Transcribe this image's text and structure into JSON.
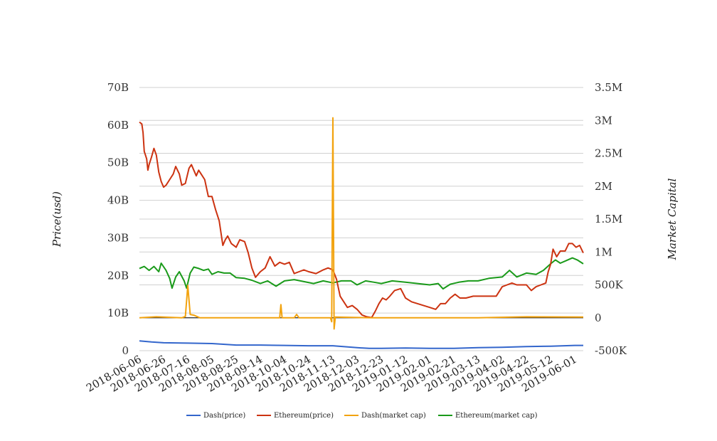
{
  "chart_data": {
    "type": "line",
    "title": "",
    "ylabel_left": "Price(usd)",
    "ylabel_right": "Market Capital",
    "left_axis": {
      "min": 0,
      "max": 70000000000,
      "ticks": [
        0,
        10000000000,
        20000000000,
        30000000000,
        40000000000,
        50000000000,
        60000000000,
        70000000000
      ],
      "tick_labels": [
        "0",
        "10B",
        "20B",
        "30B",
        "40B",
        "50B",
        "60B",
        "70B"
      ]
    },
    "right_axis": {
      "min": -500000,
      "max": 3500000,
      "ticks": [
        -500000,
        0,
        500000,
        1000000,
        1500000,
        2000000,
        2500000,
        3000000,
        3500000
      ],
      "tick_labels": [
        "-500K",
        "0",
        "500K",
        "1M",
        "1.5M",
        "2M",
        "2.5M",
        "3M",
        "3.5M"
      ]
    },
    "x_start": "2018-06-06",
    "x_end": "2019-06-08",
    "x_tick_labels": [
      "2018-06-06",
      "2018-06-26",
      "2018-07-16",
      "2018-08-05",
      "2018-08-25",
      "2018-09-14",
      "2018-10-04",
      "2018-10-24",
      "2018-11-13",
      "2018-12-03",
      "2018-12-23",
      "2019-01-12",
      "2019-02-01",
      "2019-02-21",
      "2019-03-13",
      "2019-04-02",
      "2019-04-22",
      "2019-05-12",
      "2019-06-01"
    ],
    "grid": true,
    "legend_position": "bottom",
    "series": [
      {
        "name": "Dash(price)",
        "color": "#3366cc",
        "axis": "left",
        "points": [
          [
            "2018-06-06",
            2600000000
          ],
          [
            "2018-06-16",
            2300000000
          ],
          [
            "2018-06-26",
            2100000000
          ],
          [
            "2018-07-16",
            2000000000
          ],
          [
            "2018-08-05",
            1900000000
          ],
          [
            "2018-08-25",
            1500000000
          ],
          [
            "2018-09-14",
            1500000000
          ],
          [
            "2018-10-04",
            1400000000
          ],
          [
            "2018-10-24",
            1300000000
          ],
          [
            "2018-11-13",
            1300000000
          ],
          [
            "2018-12-03",
            800000000
          ],
          [
            "2018-12-13",
            600000000
          ],
          [
            "2018-12-23",
            600000000
          ],
          [
            "2019-01-12",
            700000000
          ],
          [
            "2019-02-01",
            600000000
          ],
          [
            "2019-02-21",
            600000000
          ],
          [
            "2019-03-13",
            800000000
          ],
          [
            "2019-04-02",
            900000000
          ],
          [
            "2019-04-22",
            1100000000
          ],
          [
            "2019-05-12",
            1200000000
          ],
          [
            "2019-06-01",
            1400000000
          ],
          [
            "2019-06-08",
            1400000000
          ]
        ]
      },
      {
        "name": "Ethereum(price)",
        "color": "#cc3311",
        "axis": "left",
        "points": [
          [
            "2018-06-06",
            60800000000
          ],
          [
            "2018-06-08",
            60300000000
          ],
          [
            "2018-06-09",
            58000000000
          ],
          [
            "2018-06-10",
            53000000000
          ],
          [
            "2018-06-11",
            52000000000
          ],
          [
            "2018-06-12",
            51000000000
          ],
          [
            "2018-06-13",
            48000000000
          ],
          [
            "2018-06-14",
            49500000000
          ],
          [
            "2018-06-16",
            51500000000
          ],
          [
            "2018-06-18",
            53800000000
          ],
          [
            "2018-06-20",
            52000000000
          ],
          [
            "2018-06-22",
            47500000000
          ],
          [
            "2018-06-24",
            45000000000
          ],
          [
            "2018-06-26",
            43500000000
          ],
          [
            "2018-06-28",
            44000000000
          ],
          [
            "2018-07-01",
            45500000000
          ],
          [
            "2018-07-04",
            47000000000
          ],
          [
            "2018-07-06",
            49000000000
          ],
          [
            "2018-07-09",
            47000000000
          ],
          [
            "2018-07-11",
            44000000000
          ],
          [
            "2018-07-14",
            44500000000
          ],
          [
            "2018-07-17",
            48500000000
          ],
          [
            "2018-07-19",
            49500000000
          ],
          [
            "2018-07-21",
            48000000000
          ],
          [
            "2018-07-23",
            46500000000
          ],
          [
            "2018-07-25",
            48000000000
          ],
          [
            "2018-07-27",
            47000000000
          ],
          [
            "2018-07-30",
            45500000000
          ],
          [
            "2018-08-02",
            41000000000
          ],
          [
            "2018-08-05",
            41000000000
          ],
          [
            "2018-08-08",
            37500000000
          ],
          [
            "2018-08-11",
            34500000000
          ],
          [
            "2018-08-14",
            28000000000
          ],
          [
            "2018-08-16",
            29500000000
          ],
          [
            "2018-08-18",
            30500000000
          ],
          [
            "2018-08-21",
            28500000000
          ],
          [
            "2018-08-25",
            27500000000
          ],
          [
            "2018-08-28",
            29500000000
          ],
          [
            "2018-09-01",
            29000000000
          ],
          [
            "2018-09-04",
            26000000000
          ],
          [
            "2018-09-07",
            22000000000
          ],
          [
            "2018-09-10",
            19500000000
          ],
          [
            "2018-09-14",
            21000000000
          ],
          [
            "2018-09-18",
            22000000000
          ],
          [
            "2018-09-22",
            25000000000
          ],
          [
            "2018-09-26",
            22500000000
          ],
          [
            "2018-09-30",
            23500000000
          ],
          [
            "2018-10-04",
            23000000000
          ],
          [
            "2018-10-08",
            23500000000
          ],
          [
            "2018-10-12",
            20500000000
          ],
          [
            "2018-10-16",
            21000000000
          ],
          [
            "2018-10-20",
            21500000000
          ],
          [
            "2018-10-24",
            21000000000
          ],
          [
            "2018-10-30",
            20500000000
          ],
          [
            "2018-11-05",
            21500000000
          ],
          [
            "2018-11-09",
            22000000000
          ],
          [
            "2018-11-13",
            21500000000
          ],
          [
            "2018-11-16",
            19000000000
          ],
          [
            "2018-11-19",
            14500000000
          ],
          [
            "2018-11-22",
            13000000000
          ],
          [
            "2018-11-25",
            11500000000
          ],
          [
            "2018-11-29",
            12000000000
          ],
          [
            "2018-12-03",
            11000000000
          ],
          [
            "2018-12-07",
            9500000000
          ],
          [
            "2018-12-11",
            9000000000
          ],
          [
            "2018-12-15",
            8800000000
          ],
          [
            "2018-12-18",
            10500000000
          ],
          [
            "2018-12-21",
            12500000000
          ],
          [
            "2018-12-24",
            14000000000
          ],
          [
            "2018-12-27",
            13500000000
          ],
          [
            "2018-12-30",
            14500000000
          ],
          [
            "2019-01-03",
            16000000000
          ],
          [
            "2019-01-08",
            16500000000
          ],
          [
            "2019-01-12",
            14000000000
          ],
          [
            "2019-01-17",
            13000000000
          ],
          [
            "2019-01-22",
            12500000000
          ],
          [
            "2019-01-27",
            12000000000
          ],
          [
            "2019-02-01",
            11500000000
          ],
          [
            "2019-02-06",
            11000000000
          ],
          [
            "2019-02-10",
            12500000000
          ],
          [
            "2019-02-14",
            12500000000
          ],
          [
            "2019-02-18",
            14000000000
          ],
          [
            "2019-02-22",
            15000000000
          ],
          [
            "2019-02-26",
            14000000000
          ],
          [
            "2019-03-03",
            14000000000
          ],
          [
            "2019-03-09",
            14500000000
          ],
          [
            "2019-03-13",
            14500000000
          ],
          [
            "2019-03-18",
            14500000000
          ],
          [
            "2019-03-23",
            14500000000
          ],
          [
            "2019-03-28",
            14500000000
          ],
          [
            "2019-04-02",
            17000000000
          ],
          [
            "2019-04-06",
            17500000000
          ],
          [
            "2019-04-10",
            18000000000
          ],
          [
            "2019-04-14",
            17500000000
          ],
          [
            "2019-04-18",
            17500000000
          ],
          [
            "2019-04-22",
            17500000000
          ],
          [
            "2019-04-26",
            16000000000
          ],
          [
            "2019-04-30",
            17000000000
          ],
          [
            "2019-05-04",
            17500000000
          ],
          [
            "2019-05-08",
            18000000000
          ],
          [
            "2019-05-10",
            21000000000
          ],
          [
            "2019-05-12",
            23000000000
          ],
          [
            "2019-05-14",
            27000000000
          ],
          [
            "2019-05-17",
            25000000000
          ],
          [
            "2019-05-20",
            26500000000
          ],
          [
            "2019-05-24",
            26500000000
          ],
          [
            "2019-05-27",
            28500000000
          ],
          [
            "2019-05-30",
            28500000000
          ],
          [
            "2019-06-02",
            27500000000
          ],
          [
            "2019-06-05",
            28000000000
          ],
          [
            "2019-06-08",
            26000000000
          ]
        ]
      },
      {
        "name": "Dash(market cap)",
        "color": "#f2a30f",
        "axis": "right",
        "points": [
          [
            "2018-06-06",
            0
          ],
          [
            "2018-06-20",
            15000
          ],
          [
            "2018-07-03",
            5000
          ],
          [
            "2018-07-11",
            0
          ],
          [
            "2018-07-14",
            20000
          ],
          [
            "2018-07-16",
            490000
          ],
          [
            "2018-07-18",
            50000
          ],
          [
            "2018-07-21",
            40000
          ],
          [
            "2018-07-26",
            0
          ],
          [
            "2018-09-30",
            0
          ],
          [
            "2018-10-01",
            200000
          ],
          [
            "2018-10-02",
            0
          ],
          [
            "2018-10-12",
            0
          ],
          [
            "2018-10-14",
            50000
          ],
          [
            "2018-10-16",
            0
          ],
          [
            "2018-11-11",
            0
          ],
          [
            "2018-11-12",
            -60000
          ],
          [
            "2018-11-13",
            3040000
          ],
          [
            "2018-11-14",
            -170000
          ],
          [
            "2018-11-15",
            10000
          ],
          [
            "2018-12-15",
            0
          ],
          [
            "2019-02-01",
            0
          ],
          [
            "2019-03-13",
            0
          ],
          [
            "2019-04-22",
            15000
          ],
          [
            "2019-06-08",
            10000
          ]
        ]
      },
      {
        "name": "Ethereum(market cap)",
        "color": "#1a9a1a",
        "axis": "right",
        "points": [
          [
            "2018-06-06",
            750000
          ],
          [
            "2018-06-10",
            780000
          ],
          [
            "2018-06-14",
            720000
          ],
          [
            "2018-06-18",
            780000
          ],
          [
            "2018-06-22",
            700000
          ],
          [
            "2018-06-24",
            830000
          ],
          [
            "2018-06-28",
            720000
          ],
          [
            "2018-07-01",
            600000
          ],
          [
            "2018-07-03",
            450000
          ],
          [
            "2018-07-06",
            620000
          ],
          [
            "2018-07-09",
            700000
          ],
          [
            "2018-07-13",
            560000
          ],
          [
            "2018-07-15",
            450000
          ],
          [
            "2018-07-18",
            680000
          ],
          [
            "2018-07-21",
            770000
          ],
          [
            "2018-07-25",
            750000
          ],
          [
            "2018-07-29",
            720000
          ],
          [
            "2018-08-02",
            740000
          ],
          [
            "2018-08-05",
            660000
          ],
          [
            "2018-08-10",
            700000
          ],
          [
            "2018-08-15",
            680000
          ],
          [
            "2018-08-20",
            680000
          ],
          [
            "2018-08-25",
            610000
          ],
          [
            "2018-09-01",
            600000
          ],
          [
            "2018-09-07",
            570000
          ],
          [
            "2018-09-14",
            520000
          ],
          [
            "2018-09-20",
            560000
          ],
          [
            "2018-09-27",
            480000
          ],
          [
            "2018-10-04",
            560000
          ],
          [
            "2018-10-12",
            580000
          ],
          [
            "2018-10-20",
            550000
          ],
          [
            "2018-10-28",
            520000
          ],
          [
            "2018-11-05",
            560000
          ],
          [
            "2018-11-13",
            530000
          ],
          [
            "2018-11-20",
            560000
          ],
          [
            "2018-11-28",
            560000
          ],
          [
            "2018-12-03",
            500000
          ],
          [
            "2018-12-10",
            560000
          ],
          [
            "2018-12-17",
            540000
          ],
          [
            "2018-12-23",
            520000
          ],
          [
            "2019-01-01",
            560000
          ],
          [
            "2019-01-12",
            540000
          ],
          [
            "2019-01-22",
            520000
          ],
          [
            "2019-02-01",
            500000
          ],
          [
            "2019-02-08",
            520000
          ],
          [
            "2019-02-12",
            440000
          ],
          [
            "2019-02-18",
            510000
          ],
          [
            "2019-02-25",
            540000
          ],
          [
            "2019-03-05",
            560000
          ],
          [
            "2019-03-13",
            560000
          ],
          [
            "2019-03-22",
            600000
          ],
          [
            "2019-04-02",
            620000
          ],
          [
            "2019-04-08",
            720000
          ],
          [
            "2019-04-14",
            620000
          ],
          [
            "2019-04-22",
            680000
          ],
          [
            "2019-04-30",
            660000
          ],
          [
            "2019-05-06",
            720000
          ],
          [
            "2019-05-12",
            820000
          ],
          [
            "2019-05-16",
            880000
          ],
          [
            "2019-05-20",
            830000
          ],
          [
            "2019-05-25",
            870000
          ],
          [
            "2019-05-30",
            910000
          ],
          [
            "2019-06-03",
            880000
          ],
          [
            "2019-06-08",
            820000
          ]
        ]
      }
    ]
  }
}
